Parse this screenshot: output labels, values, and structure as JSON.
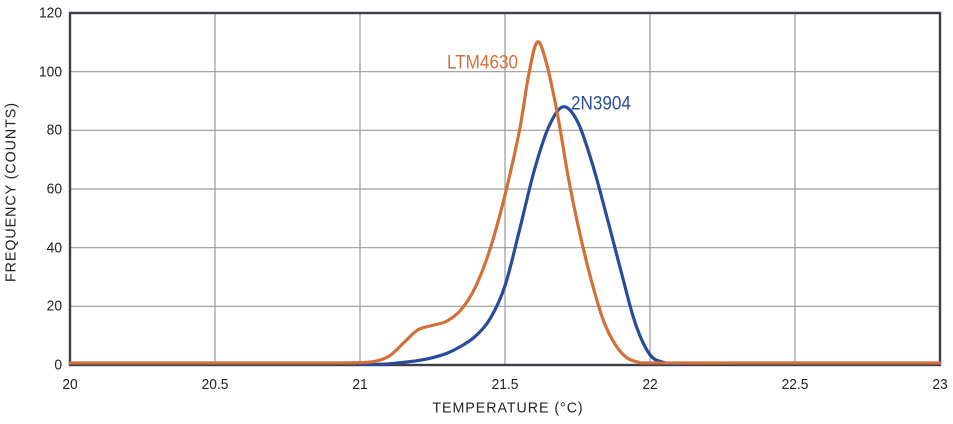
{
  "figure": {
    "background_color": "#ffffff",
    "frame_color": "#3e3e46",
    "grid_color": "#9a9a9e",
    "text_color": "#232327"
  },
  "chart_data": {
    "type": "line",
    "title": "",
    "xlabel": "TEMPERATURE (°C)",
    "ylabel": "FREQUENCY (COUNTS)",
    "xlim": [
      20,
      23
    ],
    "ylim": [
      0,
      120
    ],
    "x_ticks": [
      20,
      20.5,
      21,
      21.5,
      22,
      22.5,
      23
    ],
    "y_ticks": [
      0,
      20,
      40,
      60,
      80,
      100,
      120
    ],
    "grid": true,
    "legend_position": "inline-curve-labels",
    "series": [
      {
        "name": "2N3904",
        "color": "#2a4b9b",
        "peak": {
          "x": 21.7,
          "y": 88
        },
        "label_pos": {
          "x": 21.727,
          "y": 89
        },
        "points": [
          [
            21.0,
            0.2
          ],
          [
            21.05,
            0.2
          ],
          [
            21.1,
            0.4
          ],
          [
            21.15,
            0.9
          ],
          [
            21.2,
            1.5
          ],
          [
            21.25,
            2.5
          ],
          [
            21.3,
            4
          ],
          [
            21.35,
            6.5
          ],
          [
            21.4,
            10
          ],
          [
            21.45,
            16
          ],
          [
            21.5,
            27
          ],
          [
            21.55,
            46
          ],
          [
            21.6,
            66
          ],
          [
            21.65,
            81
          ],
          [
            21.7,
            88
          ],
          [
            21.75,
            83
          ],
          [
            21.8,
            69
          ],
          [
            21.85,
            51
          ],
          [
            21.9,
            32
          ],
          [
            21.95,
            14
          ],
          [
            22.0,
            3.5
          ],
          [
            22.05,
            0.8
          ],
          [
            22.1,
            0.3
          ]
        ]
      },
      {
        "name": "LTM4630",
        "color": "#d2703a",
        "peak": {
          "x": 21.61,
          "y": 110
        },
        "label_pos": {
          "x": 21.3,
          "y": 103
        },
        "points": [
          [
            20.0,
            0.7
          ],
          [
            20.3,
            0.7
          ],
          [
            20.6,
            0.7
          ],
          [
            20.9,
            0.7
          ],
          [
            21.0,
            0.8
          ],
          [
            21.05,
            1.2
          ],
          [
            21.1,
            3
          ],
          [
            21.15,
            7.5
          ],
          [
            21.2,
            12
          ],
          [
            21.25,
            13.5
          ],
          [
            21.3,
            15
          ],
          [
            21.35,
            19
          ],
          [
            21.4,
            27
          ],
          [
            21.45,
            40
          ],
          [
            21.5,
            58
          ],
          [
            21.55,
            80
          ],
          [
            21.58,
            98
          ],
          [
            21.61,
            110
          ],
          [
            21.64,
            104
          ],
          [
            21.68,
            86
          ],
          [
            21.72,
            63
          ],
          [
            21.76,
            44
          ],
          [
            21.8,
            28
          ],
          [
            21.84,
            15
          ],
          [
            21.88,
            7
          ],
          [
            21.92,
            2.5
          ],
          [
            21.96,
            1
          ],
          [
            22.0,
            0.7
          ],
          [
            22.3,
            0.7
          ],
          [
            22.6,
            0.7
          ],
          [
            23.0,
            0.7
          ]
        ]
      }
    ]
  }
}
